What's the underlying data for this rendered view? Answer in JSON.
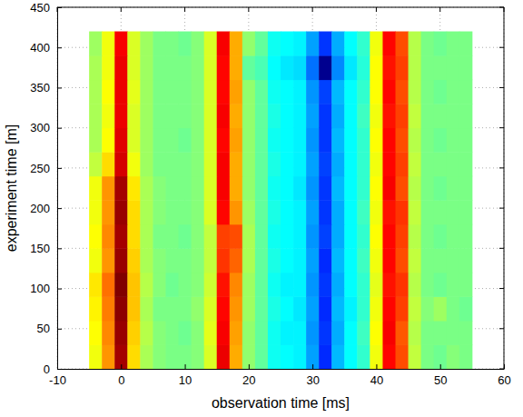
{
  "chart_data": {
    "type": "heatmap",
    "x_label": "observation time [ms]",
    "y_label": "experiment time [m]",
    "x": [
      -4,
      -2,
      0,
      2,
      4,
      6,
      8,
      10,
      12,
      14,
      16,
      18,
      20,
      22,
      24,
      26,
      28,
      30,
      32,
      34,
      36,
      38,
      40,
      42,
      44,
      46,
      48,
      50,
      52,
      54
    ],
    "y": [
      15,
      45,
      75,
      105,
      135,
      165,
      195,
      225,
      255,
      285,
      315,
      345,
      375,
      405
    ],
    "values": [
      [
        0.62,
        0.72,
        0.92,
        0.66,
        0.56,
        0.53,
        0.52,
        0.52,
        0.53,
        0.6,
        0.86,
        0.7,
        0.54,
        0.5,
        0.43,
        0.42,
        0.41,
        0.34,
        0.24,
        0.36,
        0.42,
        0.46,
        0.62,
        0.84,
        0.78,
        0.58,
        0.52,
        0.51,
        0.53,
        0.52
      ],
      [
        0.63,
        0.73,
        0.93,
        0.67,
        0.57,
        0.53,
        0.52,
        0.51,
        0.53,
        0.61,
        0.85,
        0.71,
        0.54,
        0.5,
        0.43,
        0.41,
        0.41,
        0.33,
        0.25,
        0.35,
        0.42,
        0.47,
        0.63,
        0.85,
        0.77,
        0.57,
        0.52,
        0.52,
        0.52,
        0.52
      ],
      [
        0.64,
        0.74,
        0.94,
        0.68,
        0.56,
        0.52,
        0.52,
        0.52,
        0.54,
        0.6,
        0.84,
        0.72,
        0.55,
        0.5,
        0.44,
        0.42,
        0.4,
        0.34,
        0.24,
        0.36,
        0.41,
        0.46,
        0.62,
        0.84,
        0.79,
        0.58,
        0.53,
        0.55,
        0.52,
        0.51
      ],
      [
        0.65,
        0.75,
        0.95,
        0.68,
        0.57,
        0.53,
        0.51,
        0.52,
        0.53,
        0.59,
        0.83,
        0.73,
        0.55,
        0.5,
        0.43,
        0.41,
        0.41,
        0.33,
        0.25,
        0.35,
        0.42,
        0.46,
        0.61,
        0.83,
        0.8,
        0.57,
        0.52,
        0.51,
        0.52,
        0.52
      ],
      [
        0.62,
        0.72,
        0.93,
        0.67,
        0.56,
        0.53,
        0.52,
        0.52,
        0.53,
        0.58,
        0.8,
        0.76,
        0.56,
        0.5,
        0.44,
        0.42,
        0.41,
        0.34,
        0.24,
        0.36,
        0.42,
        0.47,
        0.62,
        0.84,
        0.78,
        0.58,
        0.52,
        0.52,
        0.52,
        0.52
      ],
      [
        0.63,
        0.73,
        0.92,
        0.66,
        0.56,
        0.52,
        0.52,
        0.51,
        0.53,
        0.58,
        0.79,
        0.78,
        0.56,
        0.5,
        0.43,
        0.42,
        0.41,
        0.33,
        0.26,
        0.35,
        0.42,
        0.46,
        0.63,
        0.84,
        0.79,
        0.57,
        0.52,
        0.51,
        0.52,
        0.52
      ],
      [
        0.62,
        0.72,
        0.93,
        0.66,
        0.56,
        0.53,
        0.52,
        0.52,
        0.53,
        0.6,
        0.84,
        0.72,
        0.55,
        0.5,
        0.44,
        0.42,
        0.41,
        0.34,
        0.25,
        0.35,
        0.42,
        0.47,
        0.62,
        0.83,
        0.8,
        0.58,
        0.52,
        0.52,
        0.52,
        0.52
      ],
      [
        0.62,
        0.72,
        0.92,
        0.65,
        0.56,
        0.53,
        0.52,
        0.52,
        0.53,
        0.6,
        0.85,
        0.7,
        0.54,
        0.5,
        0.43,
        0.42,
        0.4,
        0.33,
        0.25,
        0.36,
        0.42,
        0.46,
        0.63,
        0.85,
        0.78,
        0.57,
        0.52,
        0.51,
        0.52,
        0.52
      ],
      [
        0.58,
        0.66,
        0.88,
        0.62,
        0.55,
        0.52,
        0.52,
        0.52,
        0.53,
        0.6,
        0.85,
        0.7,
        0.54,
        0.5,
        0.44,
        0.42,
        0.41,
        0.34,
        0.26,
        0.35,
        0.42,
        0.46,
        0.62,
        0.84,
        0.79,
        0.58,
        0.52,
        0.52,
        0.52,
        0.52
      ],
      [
        0.56,
        0.63,
        0.87,
        0.6,
        0.55,
        0.52,
        0.52,
        0.51,
        0.53,
        0.6,
        0.84,
        0.71,
        0.54,
        0.5,
        0.43,
        0.42,
        0.41,
        0.33,
        0.25,
        0.36,
        0.42,
        0.46,
        0.63,
        0.84,
        0.78,
        0.57,
        0.52,
        0.51,
        0.52,
        0.52
      ],
      [
        0.56,
        0.62,
        0.86,
        0.6,
        0.55,
        0.52,
        0.52,
        0.52,
        0.53,
        0.6,
        0.85,
        0.7,
        0.54,
        0.5,
        0.44,
        0.42,
        0.41,
        0.34,
        0.25,
        0.35,
        0.42,
        0.47,
        0.62,
        0.83,
        0.79,
        0.58,
        0.52,
        0.52,
        0.52,
        0.52
      ],
      [
        0.56,
        0.63,
        0.86,
        0.61,
        0.55,
        0.52,
        0.52,
        0.52,
        0.53,
        0.6,
        0.84,
        0.71,
        0.54,
        0.5,
        0.43,
        0.42,
        0.41,
        0.33,
        0.26,
        0.36,
        0.42,
        0.46,
        0.63,
        0.84,
        0.78,
        0.57,
        0.52,
        0.51,
        0.52,
        0.52
      ],
      [
        0.56,
        0.62,
        0.86,
        0.6,
        0.55,
        0.52,
        0.52,
        0.52,
        0.53,
        0.6,
        0.84,
        0.7,
        0.5,
        0.48,
        0.42,
        0.4,
        0.39,
        0.3,
        0.1,
        0.32,
        0.4,
        0.45,
        0.63,
        0.83,
        0.79,
        0.57,
        0.52,
        0.52,
        0.52,
        0.52
      ],
      [
        0.55,
        0.62,
        0.85,
        0.6,
        0.55,
        0.52,
        0.52,
        0.51,
        0.53,
        0.6,
        0.85,
        0.7,
        0.54,
        0.5,
        0.43,
        0.42,
        0.41,
        0.34,
        0.25,
        0.35,
        0.42,
        0.46,
        0.62,
        0.84,
        0.78,
        0.57,
        0.52,
        0.51,
        0.52,
        0.52
      ]
    ],
    "xlim": [
      -10,
      60
    ],
    "ylim": [
      0,
      450
    ],
    "xticks": [
      -10,
      0,
      10,
      20,
      30,
      40,
      50,
      60
    ],
    "yticks": [
      0,
      50,
      100,
      150,
      200,
      250,
      300,
      350,
      400,
      450
    ],
    "grid": true
  }
}
